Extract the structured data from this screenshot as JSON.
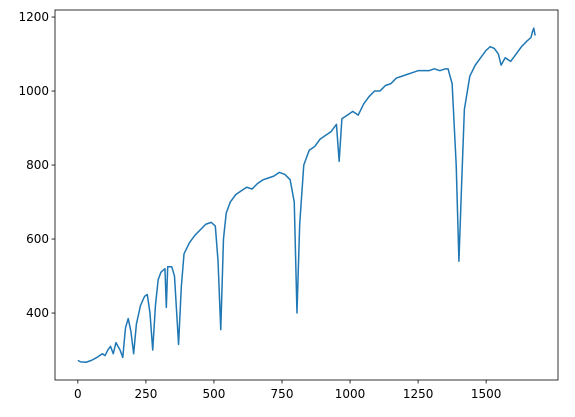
{
  "chart_data": {
    "type": "line",
    "x": [
      0,
      10,
      30,
      50,
      70,
      90,
      100,
      110,
      120,
      130,
      140,
      155,
      165,
      175,
      185,
      195,
      205,
      215,
      230,
      245,
      255,
      265,
      275,
      285,
      295,
      305,
      320,
      325,
      330,
      345,
      355,
      370,
      380,
      390,
      410,
      430,
      450,
      470,
      490,
      505,
      515,
      525,
      535,
      545,
      560,
      580,
      600,
      620,
      640,
      660,
      680,
      700,
      720,
      740,
      760,
      780,
      795,
      805,
      815,
      830,
      850,
      870,
      890,
      910,
      930,
      950,
      960,
      970,
      990,
      1010,
      1030,
      1050,
      1070,
      1090,
      1110,
      1130,
      1150,
      1170,
      1190,
      1210,
      1230,
      1250,
      1270,
      1290,
      1310,
      1330,
      1350,
      1360,
      1375,
      1390,
      1400,
      1410,
      1420,
      1440,
      1460,
      1480,
      1500,
      1515,
      1530,
      1545,
      1555,
      1570,
      1590,
      1610,
      1630,
      1650,
      1665,
      1670,
      1675,
      1680
    ],
    "series": [
      {
        "color": "#1f77b4",
        "values": [
          272,
          268,
          267,
          272,
          280,
          290,
          285,
          300,
          310,
          290,
          320,
          300,
          280,
          360,
          385,
          350,
          290,
          370,
          420,
          445,
          450,
          400,
          300,
          420,
          490,
          510,
          520,
          415,
          525,
          525,
          500,
          315,
          470,
          560,
          590,
          610,
          625,
          640,
          645,
          635,
          540,
          355,
          600,
          670,
          700,
          720,
          730,
          740,
          735,
          750,
          760,
          765,
          770,
          780,
          775,
          760,
          700,
          400,
          640,
          800,
          840,
          850,
          870,
          880,
          890,
          910,
          810,
          925,
          935,
          945,
          935,
          965,
          985,
          1000,
          1000,
          1015,
          1020,
          1035,
          1040,
          1045,
          1050,
          1055,
          1055,
          1055,
          1060,
          1055,
          1060,
          1060,
          1020,
          800,
          540,
          750,
          950,
          1040,
          1070,
          1090,
          1110,
          1120,
          1115,
          1100,
          1070,
          1090,
          1080,
          1100,
          1120,
          1135,
          1145,
          1160,
          1170,
          1150
        ]
      }
    ],
    "xlim": [
      -84,
      1764
    ],
    "ylim": [
      219,
      1219
    ],
    "xticks": [
      0,
      250,
      500,
      750,
      1000,
      1250,
      1500
    ],
    "yticks": [
      400,
      600,
      800,
      1000,
      1200
    ]
  }
}
